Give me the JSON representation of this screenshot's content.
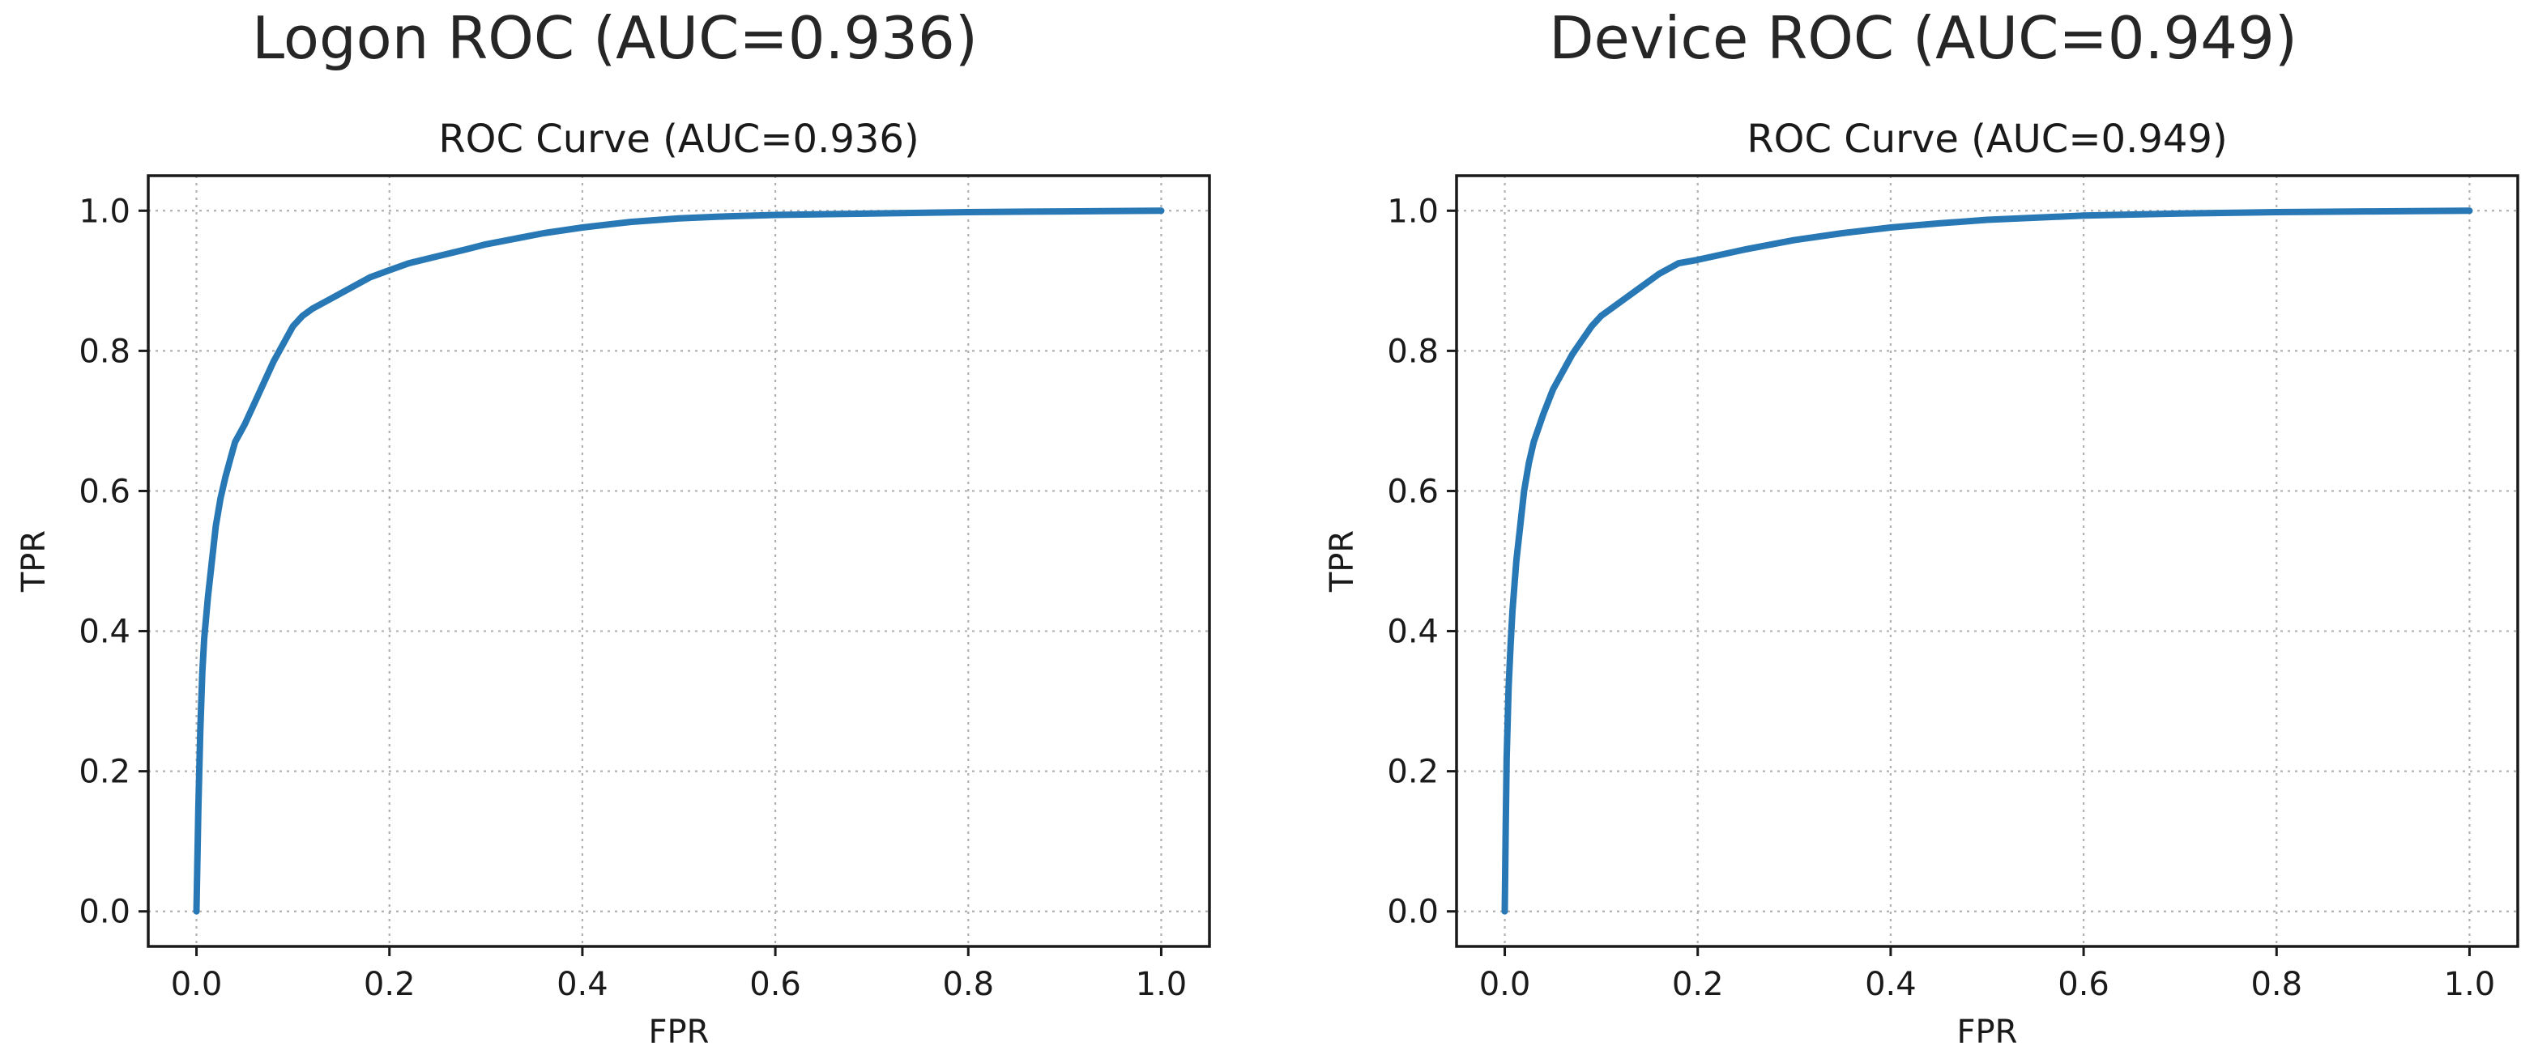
{
  "colors": {
    "line": "#2878b5",
    "text": "#1a1a1a",
    "grid": "#b0b0b0"
  },
  "chart_data": [
    {
      "type": "line",
      "suptitle": "Logon ROC (AUC=0.936)",
      "title": "ROC Curve (AUC=0.936)",
      "xlabel": "FPR",
      "ylabel": "TPR",
      "xlim": [
        -0.05,
        1.05
      ],
      "ylim": [
        -0.05,
        1.05
      ],
      "xticks": [
        0.0,
        0.2,
        0.4,
        0.6,
        0.8,
        1.0
      ],
      "yticks": [
        0.0,
        0.2,
        0.4,
        0.6,
        0.8,
        1.0
      ],
      "xtick_labels": [
        "0.0",
        "0.2",
        "0.4",
        "0.6",
        "0.8",
        "1.0"
      ],
      "ytick_labels": [
        "0.0",
        "0.2",
        "0.4",
        "0.6",
        "0.8",
        "1.0"
      ],
      "grid": true,
      "series": [
        {
          "x": [
            0.0,
            0.002,
            0.004,
            0.006,
            0.008,
            0.012,
            0.016,
            0.02,
            0.025,
            0.03,
            0.035,
            0.04,
            0.05,
            0.06,
            0.07,
            0.08,
            0.09,
            0.1,
            0.11,
            0.12,
            0.14,
            0.16,
            0.18,
            0.2,
            0.22,
            0.25,
            0.28,
            0.3,
            0.33,
            0.36,
            0.4,
            0.45,
            0.5,
            0.55,
            0.6,
            0.7,
            0.8,
            0.9,
            1.0
          ],
          "y": [
            0.0,
            0.15,
            0.26,
            0.34,
            0.39,
            0.45,
            0.5,
            0.55,
            0.59,
            0.62,
            0.645,
            0.67,
            0.695,
            0.725,
            0.755,
            0.785,
            0.81,
            0.835,
            0.85,
            0.86,
            0.875,
            0.89,
            0.905,
            0.915,
            0.925,
            0.935,
            0.945,
            0.952,
            0.96,
            0.968,
            0.976,
            0.984,
            0.989,
            0.992,
            0.994,
            0.996,
            0.998,
            0.999,
            1.0
          ]
        }
      ]
    },
    {
      "type": "line",
      "suptitle": "Device ROC (AUC=0.949)",
      "title": "ROC Curve (AUC=0.949)",
      "xlabel": "FPR",
      "ylabel": "TPR",
      "xlim": [
        -0.05,
        1.05
      ],
      "ylim": [
        -0.05,
        1.05
      ],
      "xticks": [
        0.0,
        0.2,
        0.4,
        0.6,
        0.8,
        1.0
      ],
      "yticks": [
        0.0,
        0.2,
        0.4,
        0.6,
        0.8,
        1.0
      ],
      "xtick_labels": [
        "0.0",
        "0.2",
        "0.4",
        "0.6",
        "0.8",
        "1.0"
      ],
      "ytick_labels": [
        "0.0",
        "0.2",
        "0.4",
        "0.6",
        "0.8",
        "1.0"
      ],
      "grid": true,
      "series": [
        {
          "x": [
            0.0,
            0.001,
            0.002,
            0.004,
            0.006,
            0.008,
            0.012,
            0.016,
            0.02,
            0.025,
            0.03,
            0.04,
            0.05,
            0.06,
            0.07,
            0.08,
            0.09,
            0.1,
            0.12,
            0.14,
            0.16,
            0.18,
            0.2,
            0.25,
            0.3,
            0.35,
            0.4,
            0.45,
            0.5,
            0.6,
            0.7,
            0.8,
            0.9,
            1.0
          ],
          "y": [
            0.0,
            0.12,
            0.22,
            0.32,
            0.38,
            0.43,
            0.5,
            0.55,
            0.6,
            0.64,
            0.67,
            0.71,
            0.745,
            0.77,
            0.795,
            0.815,
            0.835,
            0.85,
            0.87,
            0.89,
            0.91,
            0.925,
            0.93,
            0.945,
            0.958,
            0.968,
            0.976,
            0.982,
            0.987,
            0.993,
            0.996,
            0.998,
            0.999,
            1.0
          ]
        }
      ]
    }
  ]
}
